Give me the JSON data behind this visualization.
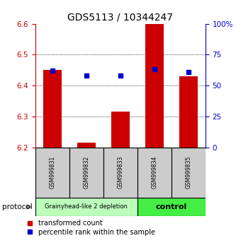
{
  "title": "GDS5113 / 10344247",
  "samples": [
    "GSM999831",
    "GSM999832",
    "GSM999833",
    "GSM999834",
    "GSM999835"
  ],
  "bar_bottoms": [
    6.2,
    6.2,
    6.2,
    6.2,
    6.2
  ],
  "bar_tops": [
    6.45,
    6.215,
    6.315,
    6.6,
    6.43
  ],
  "percentile_values": [
    62,
    58,
    58,
    63,
    61
  ],
  "ylim_left": [
    6.2,
    6.6
  ],
  "ylim_right": [
    0,
    100
  ],
  "bar_color": "#cc0000",
  "percentile_color": "#0000cc",
  "group1_label": "Grainyhead-like 2 depletion",
  "group2_label": "control",
  "group1_color": "#bbffbb",
  "group2_color": "#44ee44",
  "protocol_label": "protocol",
  "legend_bar_label": "transformed count",
  "legend_pct_label": "percentile rank within the sample",
  "grid_color": "#888888",
  "tick_color_left": "#cc0000",
  "tick_color_right": "#0000cc",
  "bar_width": 0.55,
  "label_bg": "#cccccc"
}
